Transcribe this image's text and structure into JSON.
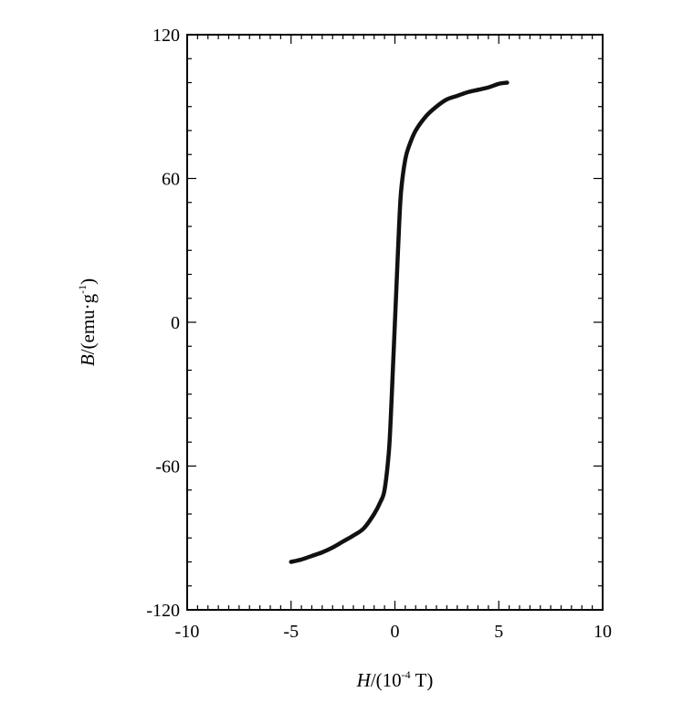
{
  "chart_data": {
    "type": "line",
    "xlabel": {
      "var": "H",
      "unit_prefix": "/(10",
      "exponent": "-4",
      "unit_suffix": " T)"
    },
    "ylabel": {
      "var": "B",
      "unit_prefix": "/(emu·g",
      "exponent": "-1",
      "unit_suffix": ")"
    },
    "xlim": [
      -10,
      10
    ],
    "ylim": [
      -120,
      120
    ],
    "xticks": [
      -10,
      -5,
      0,
      5,
      10
    ],
    "xtick_labels": [
      "-10",
      "-5",
      "0",
      "5",
      "10"
    ],
    "yticks": [
      -120,
      -60,
      0,
      60,
      120
    ],
    "ytick_labels": [
      "-120",
      "-60",
      "0",
      "60",
      "120"
    ],
    "x_minor_step": 0.5,
    "y_minor_step": 10,
    "grid": false,
    "series": [
      {
        "color": "#111111",
        "x": [
          -5.0,
          -4.5,
          -4.0,
          -3.5,
          -3.0,
          -2.5,
          -2.0,
          -1.5,
          -1.0,
          -0.7,
          -0.5,
          -0.3,
          -0.2,
          -0.1,
          0.0,
          0.1,
          0.2,
          0.3,
          0.5,
          0.7,
          1.0,
          1.5,
          2.0,
          2.5,
          3.0,
          3.5,
          4.0,
          4.5,
          5.0,
          5.4
        ],
        "y": [
          -100,
          -99,
          -97.5,
          -96,
          -94,
          -91.5,
          -89,
          -86,
          -80,
          -75,
          -70,
          -55,
          -40,
          -20,
          0,
          20,
          40,
          55,
          68,
          74,
          80,
          86,
          90,
          93,
          94.5,
          96,
          97,
          98,
          99.5,
          100
        ]
      }
    ]
  }
}
